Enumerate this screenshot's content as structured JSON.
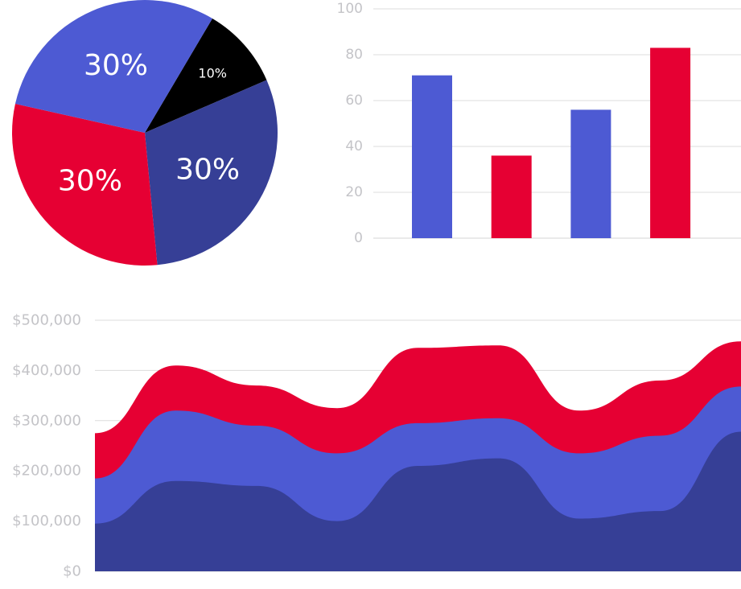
{
  "chart_data": [
    {
      "type": "pie",
      "slices": [
        {
          "label": "10%",
          "value": 10,
          "color": "#000000"
        },
        {
          "label": "30%",
          "value": 30,
          "color": "#363f96"
        },
        {
          "label": "30%",
          "value": 30,
          "color": "#e60033"
        },
        {
          "label": "30%",
          "value": 30,
          "color": "#4d5ad3"
        }
      ]
    },
    {
      "type": "bar",
      "categories": [
        "",
        "",
        "",
        ""
      ],
      "values": [
        71,
        36,
        56,
        83
      ],
      "colors": [
        "#4d5ad3",
        "#e60033",
        "#4d5ad3",
        "#e60033"
      ],
      "ylim": [
        0,
        100
      ],
      "yticks": [
        "0",
        "20",
        "40",
        "60",
        "80",
        "100"
      ],
      "grid": true
    },
    {
      "type": "area",
      "stacked": true,
      "x": [
        0,
        1,
        2,
        3,
        4,
        5,
        6,
        7,
        8
      ],
      "ylim": [
        0,
        500000
      ],
      "yticks": [
        "$0",
        "$100,000",
        "$200,000",
        "$300,000",
        "$400,000",
        "$500,000"
      ],
      "grid": true,
      "series": [
        {
          "values": [
            95000,
            180000,
            170000,
            100000,
            210000,
            225000,
            105000,
            120000,
            278000
          ],
          "color": "#363f96"
        },
        {
          "values": [
            90000,
            140000,
            120000,
            135000,
            85000,
            80000,
            130000,
            150000,
            90000
          ],
          "color": "#4d5ad3"
        },
        {
          "values": [
            90000,
            90000,
            80000,
            90000,
            150000,
            145000,
            85000,
            110000,
            90000
          ],
          "color": "#e60033"
        }
      ]
    }
  ]
}
